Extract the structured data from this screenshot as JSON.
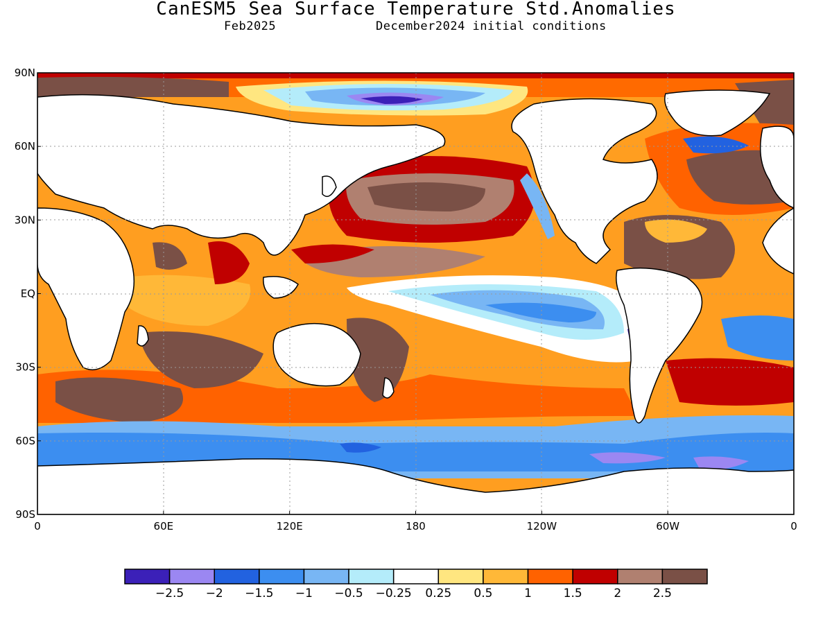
{
  "title": "CanESM5 Sea Surface Temperature Std.Anomalies",
  "subtitle_left": "Feb2025",
  "subtitle_right": "December2024 initial conditions",
  "axes": {
    "y_labels": [
      "90N",
      "60N",
      "30N",
      "EQ",
      "30S",
      "60S",
      "90S"
    ],
    "y_values": [
      90,
      60,
      30,
      0,
      -30,
      -60,
      -90
    ],
    "x_labels": [
      "0",
      "60E",
      "120E",
      "180",
      "120W",
      "60W",
      "0"
    ],
    "x_values": [
      0,
      60,
      120,
      180,
      240,
      300,
      360
    ]
  },
  "colorbar": {
    "labels": [
      "−2.5",
      "−2",
      "−1.5",
      "−1",
      "−0.5",
      "−0.25",
      "0.25",
      "0.5",
      "1",
      "1.5",
      "2",
      "2.5"
    ],
    "colors": [
      "#3b20b8",
      "#9b87f2",
      "#2262e0",
      "#3c8ef0",
      "#78b6f4",
      "#b4ecfa",
      "#ffffff",
      "#ffe680",
      "#ffb838",
      "#ff6200",
      "#c00000",
      "#b08070",
      "#7a5046"
    ]
  }
}
